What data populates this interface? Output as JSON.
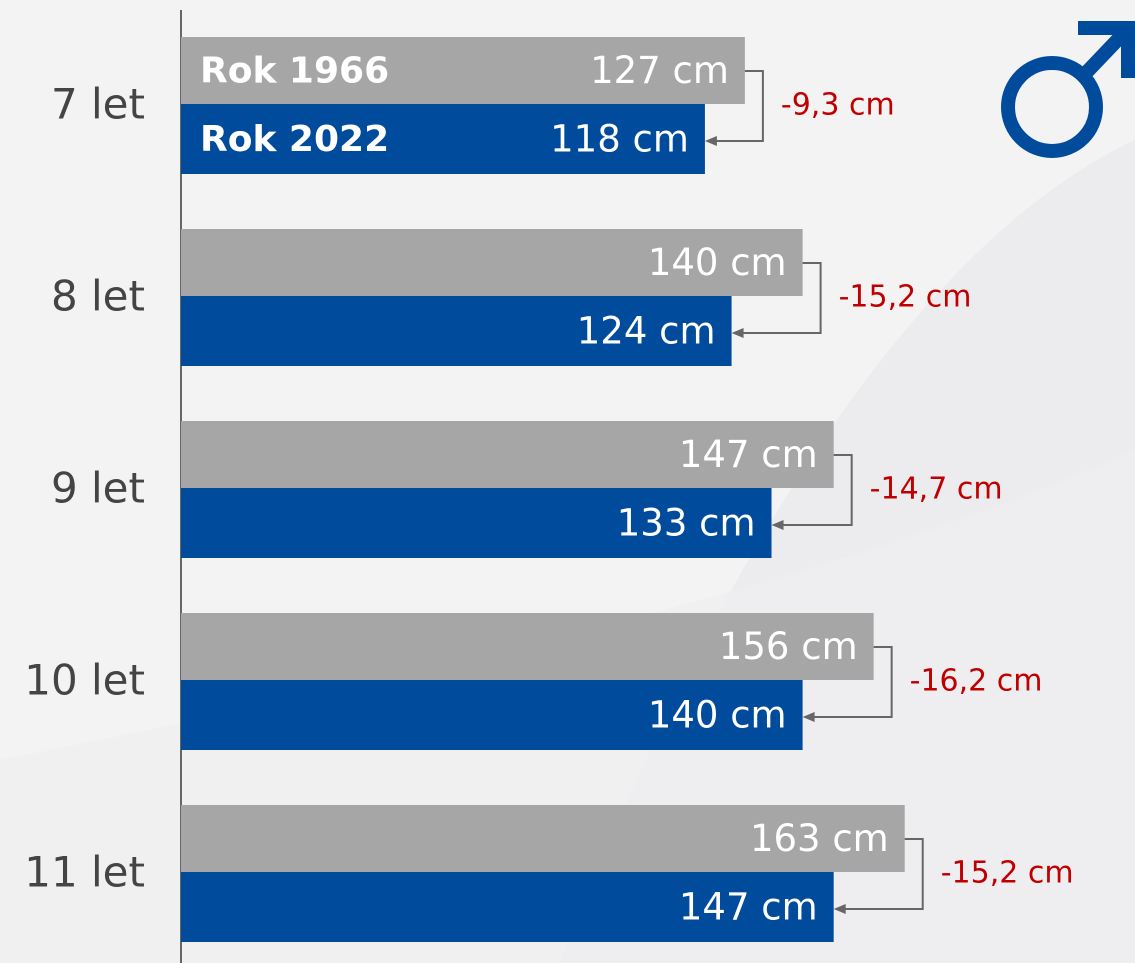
{
  "chart_data": {
    "type": "bar",
    "orientation": "horizontal",
    "categories": [
      "7 let",
      "8 let",
      "9 let",
      "10 let",
      "11 let"
    ],
    "series": [
      {
        "name": "Rok 1966",
        "color": "#a6a6a6",
        "values": [
          127,
          140,
          147,
          156,
          163
        ],
        "value_labels": [
          "127 cm",
          "140 cm",
          "147 cm",
          "156 cm",
          "163 cm"
        ]
      },
      {
        "name": "Rok 2022",
        "color": "#004b9b",
        "values": [
          118,
          124,
          133,
          140,
          147
        ],
        "value_labels": [
          "118 cm",
          "124 cm",
          "133 cm",
          "140 cm",
          "147 cm"
        ]
      }
    ],
    "annotations": [
      "-9,3 cm",
      "-15,2 cm",
      "-14,7 cm",
      "-16,2 cm",
      "-15,2 cm"
    ]
  }
}
